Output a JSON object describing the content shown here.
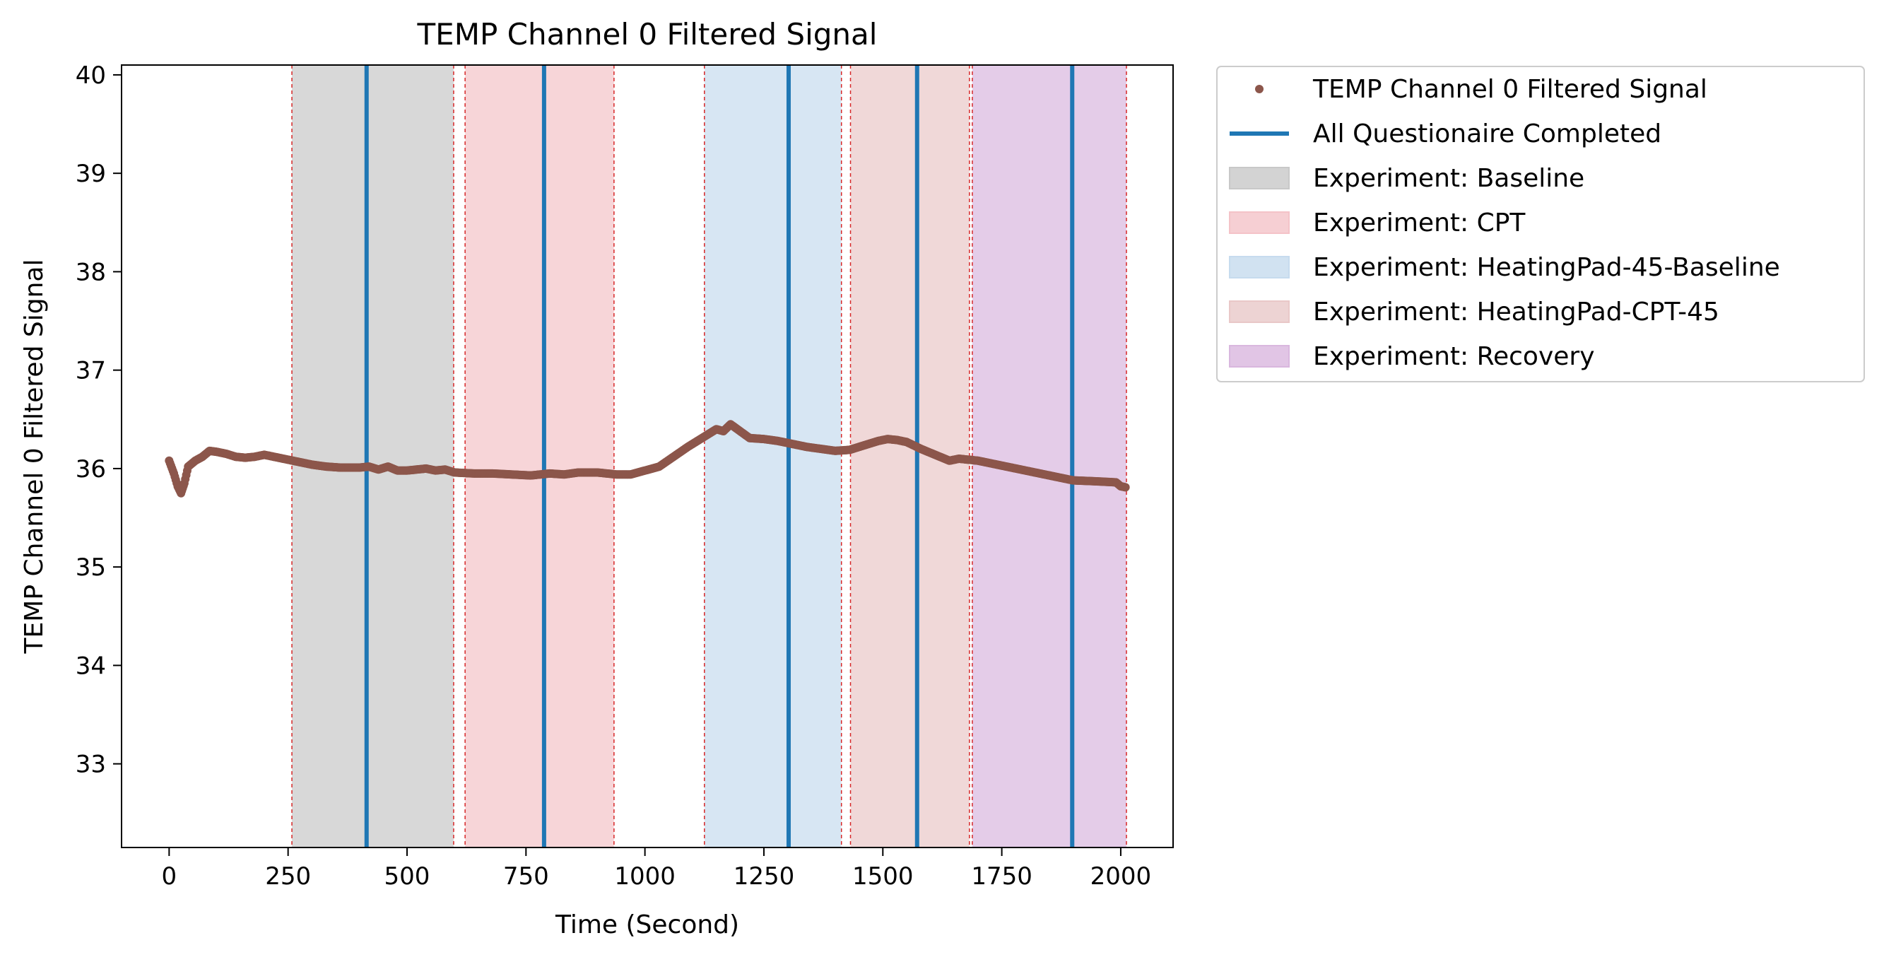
{
  "chart_data": {
    "type": "line",
    "title": "TEMP Channel 0 Filtered Signal",
    "xlabel": "Time (Second)",
    "ylabel": "TEMP Channel 0 Filtered Signal",
    "xlim": [
      -100,
      2110
    ],
    "ylim": [
      32.15,
      40.1
    ],
    "x_ticks": [
      0,
      250,
      500,
      750,
      1000,
      1250,
      1500,
      1750,
      2000
    ],
    "y_ticks": [
      33,
      34,
      35,
      36,
      37,
      38,
      39,
      40
    ],
    "grid": false,
    "legend_position": "outside-right",
    "series": [
      {
        "name": "TEMP Channel 0 Filtered Signal",
        "style": "dots",
        "color": "#8c564b",
        "x": [
          0,
          10,
          18,
          25,
          32,
          40,
          55,
          70,
          85,
          100,
          120,
          140,
          160,
          180,
          200,
          220,
          240,
          260,
          280,
          300,
          330,
          360,
          400,
          420,
          440,
          460,
          480,
          500,
          520,
          540,
          560,
          580,
          600,
          640,
          680,
          720,
          760,
          800,
          830,
          860,
          900,
          940,
          970,
          1000,
          1030,
          1060,
          1090,
          1110,
          1130,
          1150,
          1165,
          1180,
          1200,
          1220,
          1250,
          1280,
          1310,
          1340,
          1370,
          1400,
          1430,
          1450,
          1470,
          1490,
          1510,
          1530,
          1550,
          1580,
          1610,
          1640,
          1660,
          1700,
          1750,
          1800,
          1850,
          1900,
          1950,
          1990,
          2000,
          2010
        ],
        "y": [
          36.08,
          35.95,
          35.82,
          35.75,
          35.85,
          36.02,
          36.08,
          36.12,
          36.18,
          36.17,
          36.15,
          36.12,
          36.11,
          36.12,
          36.14,
          36.12,
          36.1,
          36.08,
          36.06,
          36.04,
          36.02,
          36.01,
          36.01,
          36.02,
          35.99,
          36.02,
          35.98,
          35.98,
          35.99,
          36.0,
          35.98,
          35.99,
          35.96,
          35.95,
          35.95,
          35.94,
          35.93,
          35.95,
          35.94,
          35.96,
          35.96,
          35.94,
          35.94,
          35.98,
          36.02,
          36.12,
          36.22,
          36.28,
          36.34,
          36.4,
          36.38,
          36.45,
          36.38,
          36.31,
          36.3,
          36.28,
          36.25,
          36.22,
          36.2,
          36.18,
          36.19,
          36.22,
          36.25,
          36.28,
          36.3,
          36.29,
          36.27,
          36.2,
          36.14,
          36.08,
          36.1,
          36.08,
          36.03,
          35.98,
          35.93,
          35.88,
          35.87,
          35.86,
          35.82,
          35.81
        ]
      },
      {
        "name": "All Questionaire Completed",
        "style": "vertical-lines",
        "color": "#1f77b4",
        "x": [
          415,
          788,
          1302,
          1572,
          1898
        ]
      }
    ],
    "spans": [
      {
        "name": "Experiment: Baseline",
        "color": "#c8c8c8",
        "intervals": [
          [
            258,
            598
          ]
        ]
      },
      {
        "name": "Experiment: CPT",
        "color": "#f4c3c8",
        "intervals": [
          [
            622,
            935
          ]
        ]
      },
      {
        "name": "Experiment: HeatingPad-45-Baseline",
        "color": "#c6dbee",
        "intervals": [
          [
            1125,
            1413
          ]
        ]
      },
      {
        "name": "Experiment: HeatingPad-CPT-45",
        "color": "#e9c8c8",
        "intervals": [
          [
            1432,
            1682
          ]
        ]
      },
      {
        "name": "Experiment: Recovery",
        "color": "#d9b7de",
        "intervals": [
          [
            1688,
            2012
          ]
        ]
      }
    ],
    "span_boundaries": [
      258,
      598,
      622,
      935,
      1125,
      1413,
      1432,
      1682,
      1688,
      2012
    ],
    "span_boundary_color": "#d62728"
  }
}
